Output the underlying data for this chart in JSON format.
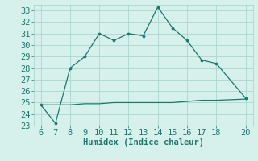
{
  "upper_x": [
    6,
    7,
    8,
    9,
    10,
    11,
    12,
    13,
    14,
    15,
    16,
    17,
    18,
    20
  ],
  "upper_y": [
    24.8,
    23.2,
    28.0,
    29.0,
    31.0,
    30.4,
    31.0,
    30.8,
    33.3,
    31.5,
    30.4,
    28.7,
    28.4,
    25.4
  ],
  "lower_x": [
    6,
    7,
    8,
    9,
    10,
    11,
    12,
    13,
    14,
    15,
    16,
    17,
    18,
    20
  ],
  "lower_y": [
    24.8,
    24.8,
    24.8,
    24.9,
    24.9,
    25.0,
    25.0,
    25.0,
    25.0,
    25.0,
    25.1,
    25.2,
    25.2,
    25.3
  ],
  "line_color": "#1a7a6e",
  "bg_color": "#d6f0ec",
  "grid_color": "#a8d8d0",
  "xlabel": "Humidex (Indice chaleur)",
  "xlim": [
    5.5,
    20.5
  ],
  "ylim": [
    23,
    33.5
  ],
  "xticks": [
    6,
    7,
    8,
    9,
    10,
    11,
    12,
    13,
    14,
    15,
    16,
    17,
    18,
    20
  ],
  "yticks": [
    23,
    24,
    25,
    26,
    27,
    28,
    29,
    30,
    31,
    32,
    33
  ],
  "font_size": 7.5
}
